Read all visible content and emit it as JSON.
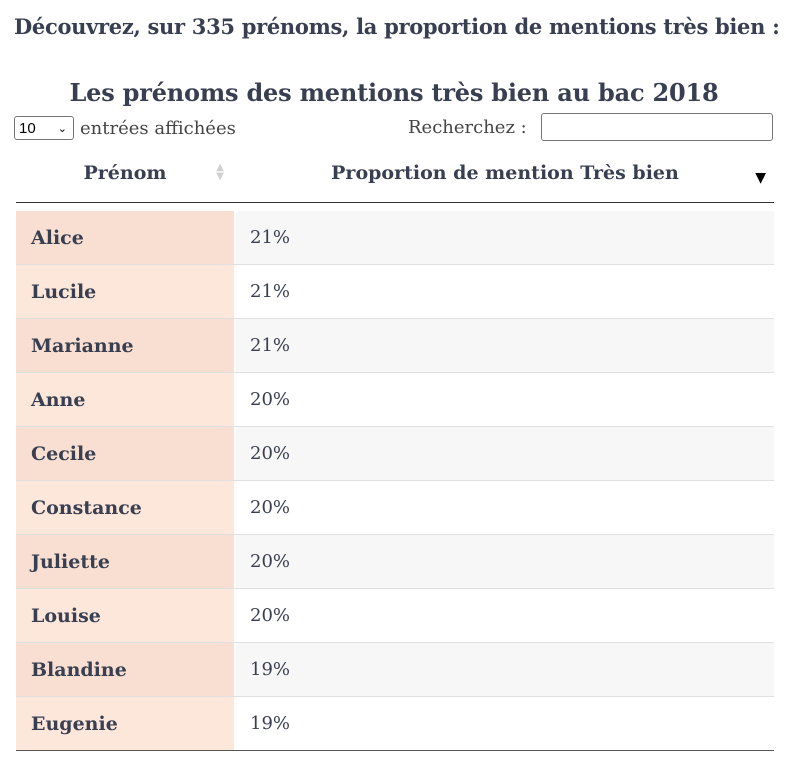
{
  "intro": "Découvrez, sur 335 prénoms, la proportion de mentions très bien :",
  "table_title": "Les prénoms des mentions très bien au bac 2018",
  "length": {
    "selected": "10",
    "label": "entrées affichées"
  },
  "search": {
    "label": "Recherchez :",
    "value": ""
  },
  "columns": {
    "name": "Prénom",
    "pct": "Proportion de mention Très bien"
  },
  "rows": [
    {
      "name": "Alice",
      "pct": "21%"
    },
    {
      "name": "Lucile",
      "pct": "21%"
    },
    {
      "name": "Marianne",
      "pct": "21%"
    },
    {
      "name": "Anne",
      "pct": "20%"
    },
    {
      "name": "Cecile",
      "pct": "20%"
    },
    {
      "name": "Constance",
      "pct": "20%"
    },
    {
      "name": "Juliette",
      "pct": "20%"
    },
    {
      "name": "Louise",
      "pct": "20%"
    },
    {
      "name": "Blandine",
      "pct": "19%"
    },
    {
      "name": "Eugenie",
      "pct": "19%"
    }
  ]
}
